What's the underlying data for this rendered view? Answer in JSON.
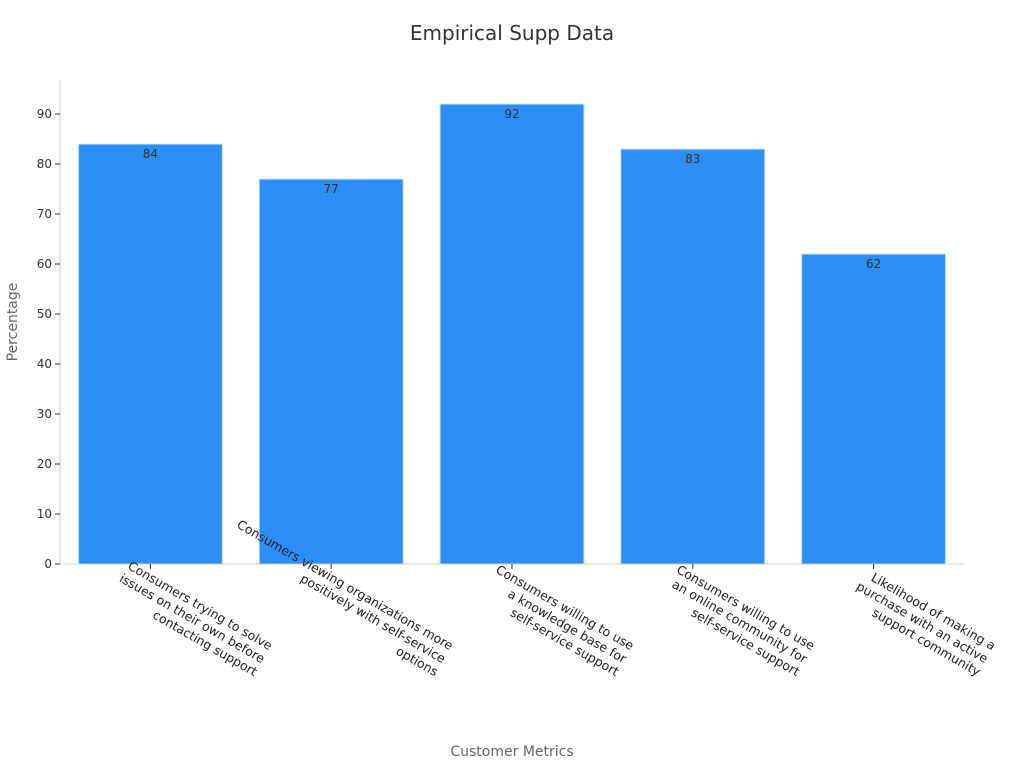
{
  "chart_data": {
    "type": "bar",
    "title": "Empirical Supp Data",
    "xlabel": "Customer Metrics",
    "ylabel": "Percentage",
    "categories": [
      [
        "Consumers trying to solve",
        "issues on their own before",
        "contacting support"
      ],
      [
        "Consumers viewing organizations more",
        "positively with self-service",
        "options"
      ],
      [
        "Consumers willing to use",
        "a knowledge base for",
        "self-service support"
      ],
      [
        "Consumers willing to use",
        "an online community for",
        "self-service support"
      ],
      [
        "Likelihood of making a",
        "purchase with an active",
        "support community"
      ]
    ],
    "values": [
      84,
      77,
      92,
      83,
      62
    ],
    "ylim": [
      0,
      97
    ],
    "yticks": [
      0,
      10,
      20,
      30,
      40,
      50,
      60,
      70,
      80,
      90
    ],
    "bar_color": "#2d8ff5",
    "grid": false,
    "legend": "none"
  }
}
